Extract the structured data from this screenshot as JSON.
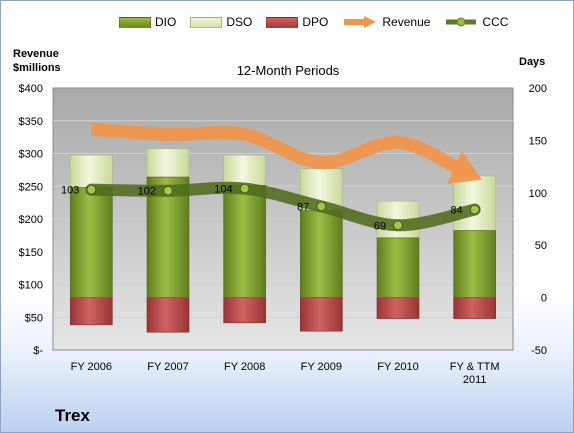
{
  "chart_data": {
    "type": "bar",
    "title": "12-Month Periods",
    "company": "Trex",
    "left_axis_title": [
      "Revenue",
      "$millions"
    ],
    "right_axis_title": "Days",
    "categories": [
      [
        "FY 2006"
      ],
      [
        "FY 2007"
      ],
      [
        "FY 2008"
      ],
      [
        "FY 2009"
      ],
      [
        "FY 2010"
      ],
      [
        "FY & TTM",
        "2011"
      ]
    ],
    "left_axis": {
      "min": 0,
      "max": 400,
      "step": 50,
      "tick_labels": [
        "$-",
        "$50",
        "$100",
        "$150",
        "$200",
        "$250",
        "$300",
        "$350",
        "$400"
      ]
    },
    "right_axis": {
      "min": -50,
      "max": 200,
      "step": 50,
      "tick_labels": [
        "-50",
        "0",
        "50",
        "100",
        "150",
        "200"
      ]
    },
    "grid": true,
    "legend_position": "top",
    "series": [
      {
        "name": "DIO",
        "type": "stacked-bar",
        "axis": "right",
        "color": "#7a9a2a",
        "values": [
          105,
          115,
          107,
          83,
          57,
          64
        ]
      },
      {
        "name": "DSO",
        "type": "stacked-bar",
        "axis": "right",
        "color": "#dde8b8",
        "values": [
          31,
          27,
          29,
          40,
          35,
          52
        ]
      },
      {
        "name": "DPO",
        "type": "negative-bar",
        "axis": "right",
        "color": "#b84a4a",
        "values": [
          -26,
          -33,
          -24,
          -32,
          -20,
          -20
        ]
      },
      {
        "name": "Revenue",
        "type": "line",
        "axis": "left",
        "color": "#f2944a",
        "values": [
          337,
          329,
          329,
          286,
          317,
          265
        ]
      },
      {
        "name": "CCC",
        "type": "line",
        "axis": "right",
        "color": "#5e7a26",
        "values": [
          103,
          102,
          104,
          87,
          69,
          84
        ]
      }
    ],
    "data_labels": [
      "103",
      "102",
      "104",
      "87",
      "69",
      "84"
    ]
  }
}
